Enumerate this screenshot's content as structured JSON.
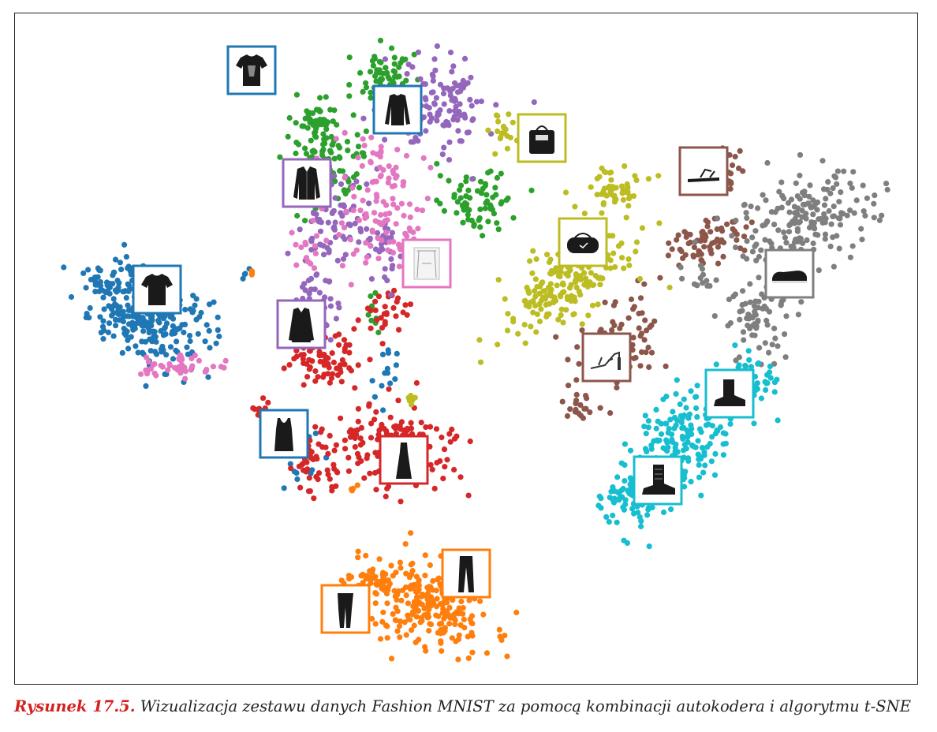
{
  "caption": {
    "label": "Rysunek 17.5.",
    "text": " Wizualizacja zestawu danych Fashion MNIST za pomocą kombinacji autokodera i algorytmu t-SNE"
  },
  "chart_data": {
    "type": "scatter",
    "xlabel": "",
    "ylabel": "",
    "grid": false,
    "legend": "none",
    "series": [
      {
        "color": "#1f77b4",
        "class_icon": "tshirt"
      },
      {
        "color": "#ff7f0e",
        "class_icon": "trouser"
      },
      {
        "color": "#2ca02c",
        "class_icon": "pullover"
      },
      {
        "color": "#d62728",
        "class_icon": "dress"
      },
      {
        "color": "#9467bd",
        "class_icon": "coat"
      },
      {
        "color": "#8c564b",
        "class_icon": "sandal"
      },
      {
        "color": "#e377c2",
        "class_icon": "shirt"
      },
      {
        "color": "#7f7f7f",
        "class_icon": "sneaker"
      },
      {
        "color": "#bcbd22",
        "class_icon": "bag"
      },
      {
        "color": "#17becf",
        "class_icon": "ankle-boot"
      }
    ],
    "thumbnails": [
      {
        "icon": "graphic-tshirt",
        "color": "#1f77b4"
      },
      {
        "icon": "long-sleeve-top",
        "color": "#1f77b4"
      },
      {
        "icon": "jacket",
        "color": "#9467bd"
      },
      {
        "icon": "tshirt",
        "color": "#1f77b4"
      },
      {
        "icon": "coat",
        "color": "#9467bd"
      },
      {
        "icon": "tank-top",
        "color": "#1f77b4"
      },
      {
        "icon": "dress",
        "color": "#d62728"
      },
      {
        "icon": "shirt",
        "color": "#e377c2"
      },
      {
        "icon": "bag",
        "color": "#bcbd22"
      },
      {
        "icon": "duffel-bag",
        "color": "#bcbd22"
      },
      {
        "icon": "sandal",
        "color": "#8c564b"
      },
      {
        "icon": "sneaker",
        "color": "#7f7f7f"
      },
      {
        "icon": "high-heel-sandal",
        "color": "#8c564b"
      },
      {
        "icon": "ankle-boot",
        "color": "#17becf"
      },
      {
        "icon": "combat-boot",
        "color": "#17becf"
      },
      {
        "icon": "jeans",
        "color": "#ff7f0e"
      },
      {
        "icon": "leggings",
        "color": "#ff7f0e"
      }
    ]
  }
}
